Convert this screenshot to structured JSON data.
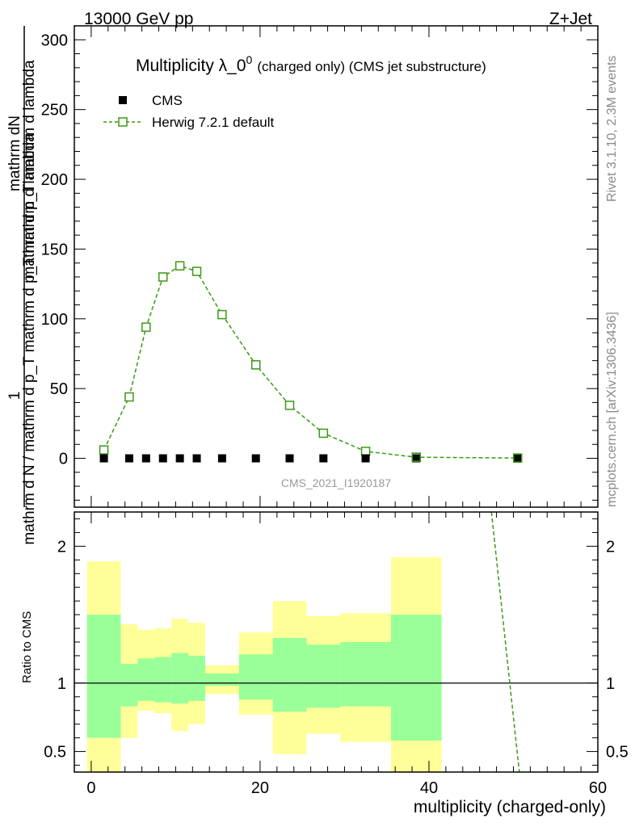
{
  "header": {
    "energy_label": "13000 GeV pp",
    "process_label": "Z+Jet"
  },
  "side_labels": {
    "rivet": "Rivet 3.1.10,  2.3M events",
    "mcplots": "mcplots.cern.ch [arXiv:1306.3436]"
  },
  "colors": {
    "cms": "#000000",
    "herwig": "#3a9a13",
    "band_inner": "#99ff99",
    "band_outer": "#ffff99"
  },
  "chart_data": [
    {
      "type": "scatter",
      "title_main": "Multiplicity λ_0",
      "title_sup": "0",
      "title_suffix": "(charged only) (CMS jet substructure)",
      "xlabel": "multiplicity (charged-only)",
      "ylabel": {
        "numerator": "1",
        "denominator": "mathrm d N / mathrm d p_T mathrm d p_T mathrm d lambda",
        "numerator2": "mathrm dN",
        "denominator2": "mathrm d p_T mathrm d lambda"
      },
      "xlim": [
        -2,
        60
      ],
      "ylim": [
        -35,
        310
      ],
      "xticks": [
        0,
        20,
        40,
        60
      ],
      "yticks": [
        0,
        50,
        100,
        150,
        200,
        250,
        300
      ],
      "analysis_id": "CMS_2021_I1920187",
      "legend": {
        "cms": "CMS",
        "herwig": "Herwig 7.2.1 default"
      },
      "series": [
        {
          "name": "CMS",
          "x": [
            1.5,
            4.5,
            6.5,
            8.5,
            10.5,
            12.5,
            15.5,
            19.5,
            23.5,
            27.5,
            32.5,
            38.5,
            50.5
          ],
          "values": [
            0,
            0,
            0,
            0,
            0,
            0,
            0,
            0,
            0,
            0,
            0,
            0,
            0
          ]
        },
        {
          "name": "Herwig 7.2.1 default",
          "x": [
            1.5,
            4.5,
            6.5,
            8.5,
            10.5,
            12.5,
            15.5,
            19.5,
            23.5,
            27.5,
            32.5,
            38.5,
            50.5
          ],
          "values": [
            6,
            44,
            94,
            130,
            138,
            134,
            103,
            67,
            38,
            18,
            5,
            0.8,
            0.2
          ]
        }
      ]
    },
    {
      "type": "ratio",
      "ylabel": "Ratio to CMS",
      "xlim": [
        -2,
        60
      ],
      "ylim": [
        0.35,
        2.25
      ],
      "yticks": [
        0.5,
        1,
        2
      ],
      "ytick_labels": [
        "0.5",
        "1",
        "2"
      ],
      "reference": 1,
      "bins": [
        {
          "lo": -0.5,
          "hi": 3.5,
          "inner": [
            0.6,
            1.5
          ],
          "outer": [
            0.35,
            1.89
          ]
        },
        {
          "lo": 3.5,
          "hi": 5.5,
          "inner": [
            0.83,
            1.14
          ],
          "outer": [
            0.6,
            1.43
          ]
        },
        {
          "lo": 5.5,
          "hi": 7.5,
          "inner": [
            0.87,
            1.18
          ],
          "outer": [
            0.8,
            1.39
          ]
        },
        {
          "lo": 7.5,
          "hi": 9.5,
          "inner": [
            0.86,
            1.19
          ],
          "outer": [
            0.78,
            1.4
          ]
        },
        {
          "lo": 9.5,
          "hi": 11.5,
          "inner": [
            0.85,
            1.22
          ],
          "outer": [
            0.65,
            1.47
          ]
        },
        {
          "lo": 11.5,
          "hi": 13.5,
          "inner": [
            0.87,
            1.2
          ],
          "outer": [
            0.7,
            1.44
          ]
        },
        {
          "lo": 13.5,
          "hi": 17.5,
          "inner": [
            0.98,
            1.07
          ],
          "outer": [
            0.92,
            1.13
          ]
        },
        {
          "lo": 17.5,
          "hi": 21.5,
          "inner": [
            0.88,
            1.21
          ],
          "outer": [
            0.77,
            1.37
          ]
        },
        {
          "lo": 21.5,
          "hi": 25.5,
          "inner": [
            0.79,
            1.33
          ],
          "outer": [
            0.48,
            1.6
          ]
        },
        {
          "lo": 25.5,
          "hi": 29.5,
          "inner": [
            0.82,
            1.28
          ],
          "outer": [
            0.63,
            1.49
          ]
        },
        {
          "lo": 29.5,
          "hi": 35.5,
          "inner": [
            0.83,
            1.3
          ],
          "outer": [
            0.57,
            1.51
          ]
        },
        {
          "lo": 35.5,
          "hi": 41.5,
          "inner": [
            0.58,
            1.5
          ],
          "outer": [
            0.35,
            1.92
          ]
        }
      ],
      "herwig_ratio_line": {
        "x": [
          47.4,
          50.7
        ],
        "values": [
          2.25,
          0.35
        ]
      }
    }
  ]
}
